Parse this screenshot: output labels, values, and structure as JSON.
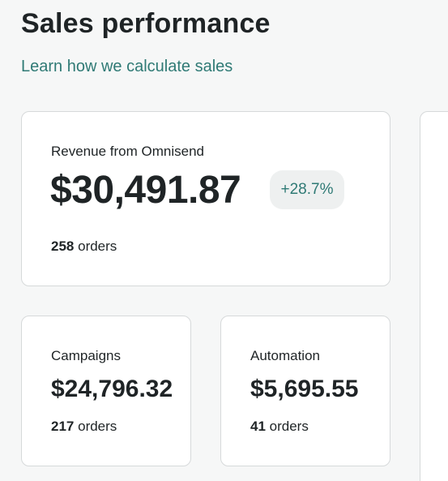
{
  "header": {
    "title": "Sales performance",
    "learn_link": "Learn how we calculate sales"
  },
  "revenue": {
    "label": "Revenue from Omnisend",
    "value": "$30,491.87",
    "change": "+28.7%",
    "orders_count": "258",
    "orders_label": "orders"
  },
  "campaigns": {
    "label": "Campaigns",
    "value": "$24,796.32",
    "orders_count": "217",
    "orders_label": "orders"
  },
  "automation": {
    "label": "Automation",
    "value": "$5,695.55",
    "orders_count": "41",
    "orders_label": "orders"
  },
  "colors": {
    "accent": "#2f7a75",
    "text": "#1f2426",
    "background": "#f6f7f7",
    "card_border": "#d6d9da",
    "badge_bg": "#eef0f0"
  }
}
